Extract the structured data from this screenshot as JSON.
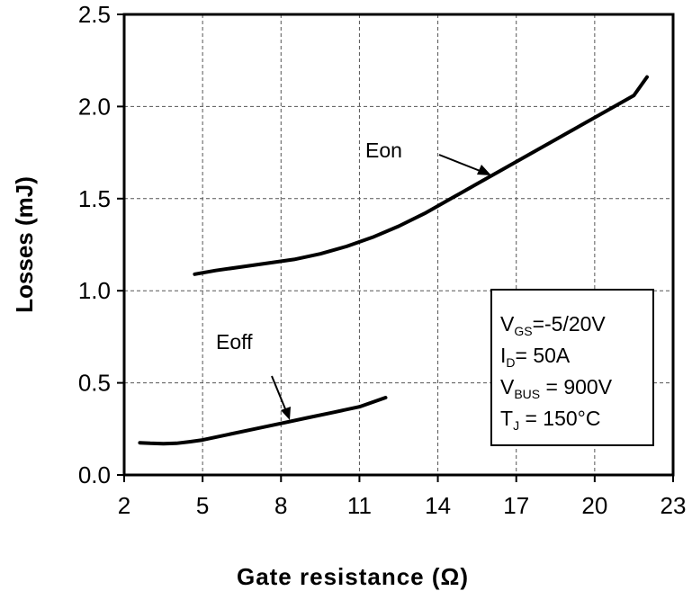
{
  "chart_data": {
    "type": "line",
    "title": "",
    "xlabel": "Gate resistance (Ω)",
    "ylabel": "Losses (mJ)",
    "xlim": [
      2,
      23
    ],
    "ylim": [
      0,
      2.5
    ],
    "x_ticks": [
      2,
      5,
      8,
      11,
      14,
      17,
      20,
      23
    ],
    "x_tick_labels": [
      "2",
      "5",
      "8",
      "11",
      "14",
      "17",
      "20",
      "23"
    ],
    "y_ticks": [
      0,
      0.5,
      1.0,
      1.5,
      2.0,
      2.5
    ],
    "y_tick_labels": [
      "0.0",
      "0.5",
      "1.0",
      "1.5",
      "2.0",
      "2.5"
    ],
    "grid": true,
    "series": [
      {
        "name": "Eon",
        "x": [
          4.7,
          5.5,
          6.5,
          7.5,
          8.5,
          9.5,
          10.5,
          11.5,
          12.5,
          13.5,
          14.5,
          15.5,
          16.5,
          17.5,
          18.5,
          19.5,
          20.5,
          21.5,
          22.0
        ],
        "y": [
          1.09,
          1.11,
          1.13,
          1.15,
          1.17,
          1.2,
          1.24,
          1.29,
          1.35,
          1.42,
          1.5,
          1.58,
          1.66,
          1.74,
          1.82,
          1.9,
          1.98,
          2.06,
          2.16
        ]
      },
      {
        "name": "Eoff",
        "x": [
          2.6,
          3.0,
          3.5,
          4.0,
          4.5,
          5.0,
          6.0,
          7.0,
          8.0,
          9.0,
          10.0,
          11.0,
          12.0
        ],
        "y": [
          0.175,
          0.172,
          0.17,
          0.172,
          0.18,
          0.19,
          0.22,
          0.25,
          0.28,
          0.31,
          0.34,
          0.37,
          0.42
        ]
      }
    ],
    "annotations": [
      {
        "text": "Eon",
        "series": "Eon",
        "arrow_to": [
          16.0,
          1.63
        ]
      },
      {
        "text": "Eoff",
        "series": "Eoff",
        "arrow_to": [
          8.3,
          0.3
        ]
      }
    ],
    "legend": {
      "placement": "bottom-right",
      "lines": [
        {
          "main": "V",
          "sub": "GS",
          "rest": "=-5/20V"
        },
        {
          "main": "I",
          "sub": "D",
          "rest": "= 50A"
        },
        {
          "main": "V",
          "sub": "BUS",
          "rest": " = 900V"
        },
        {
          "main": "T",
          "sub": "J",
          "rest": " = 150°C"
        }
      ]
    }
  }
}
